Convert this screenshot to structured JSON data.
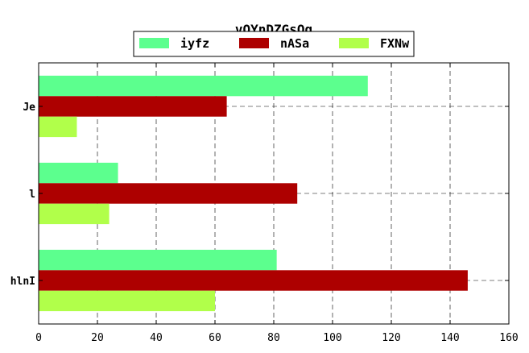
{
  "chart_data": {
    "type": "bar",
    "orientation": "horizontal",
    "title": "vOYnDZGsOq",
    "xlabel": "",
    "ylabel": "",
    "categories": [
      "hlnI",
      "l",
      "Je"
    ],
    "series": [
      {
        "name": "iyfz",
        "color": "#5cff8e",
        "values": [
          81,
          27,
          112
        ]
      },
      {
        "name": "nASa",
        "color": "#ad0000",
        "values": [
          146,
          88,
          64
        ]
      },
      {
        "name": "FXNw",
        "color": "#b1ff4a",
        "values": [
          60,
          24,
          13
        ]
      }
    ],
    "xlim": [
      0,
      160
    ],
    "xticks": [
      "0",
      "20",
      "40",
      "60",
      "80",
      "100",
      "120",
      "140",
      "160"
    ],
    "grid": true,
    "legend_position": "top-center"
  }
}
